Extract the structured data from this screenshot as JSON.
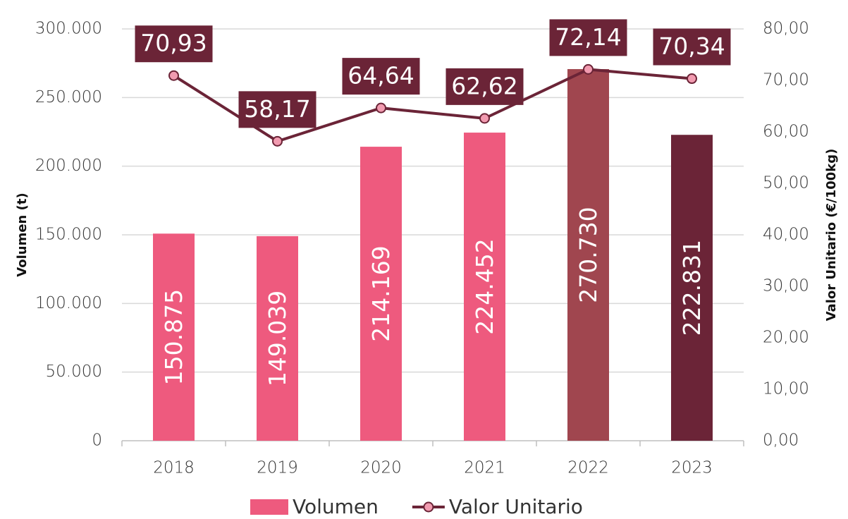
{
  "chart_data": {
    "type": "bar",
    "categories": [
      "2018",
      "2019",
      "2020",
      "2021",
      "2022",
      "2023"
    ],
    "series": [
      {
        "name": "Volumen",
        "type": "bar",
        "color": "#ee5a7e",
        "colors": [
          "#ee5a7e",
          "#ee5a7e",
          "#ee5a7e",
          "#ee5a7e",
          "#a0464f",
          "#6b2437"
        ],
        "values": [
          150875,
          149039,
          214169,
          224452,
          270730,
          222831
        ],
        "value_labels": [
          "150.875",
          "149.039",
          "214.169",
          "224.452",
          "270.730",
          "222.831"
        ]
      },
      {
        "name": "Valor Unitario",
        "type": "line",
        "axis": "y2",
        "color": "#6b2437",
        "marker_color": "#f19bb0",
        "values": [
          70.93,
          58.17,
          64.64,
          62.62,
          72.14,
          70.34
        ],
        "value_labels": [
          "70,93",
          "58,17",
          "64,64",
          "62,62",
          "72,14",
          "70,34"
        ]
      }
    ],
    "y_label": "Volumen (t)",
    "y2_label": "Valor Unitario (€/100kg)",
    "ylim": [
      0,
      300000
    ],
    "yticks": [
      0,
      {
        "value": 50000,
        "label": "50.000"
      },
      {
        "value": 100000,
        "label": "100.000"
      },
      {
        "value": 150000,
        "label": "150.000"
      },
      {
        "value": 200000,
        "label": "200.000"
      },
      {
        "value": 250000,
        "label": "250.000"
      },
      {
        "value": 300000,
        "label": "300.000"
      }
    ],
    "y2lim": [
      0,
      80
    ],
    "y2ticks": [
      {
        "value": 0,
        "label": "0,00"
      },
      {
        "value": 10,
        "label": "10,00"
      },
      {
        "value": 20,
        "label": "20,00"
      },
      {
        "value": 30,
        "label": "30,00"
      },
      {
        "value": 40,
        "label": "40,00"
      },
      {
        "value": 50,
        "label": "50,00"
      },
      {
        "value": 60,
        "label": "60,00"
      },
      {
        "value": 70,
        "label": "70,00"
      },
      {
        "value": 80,
        "label": "80,00"
      }
    ],
    "grid": true,
    "legend": "bottom"
  }
}
